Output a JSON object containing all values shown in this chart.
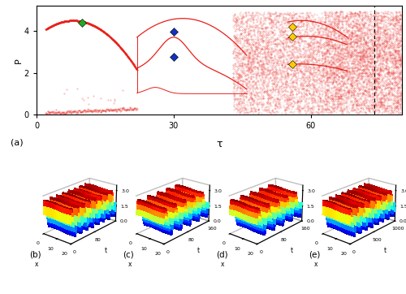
{
  "bifurcation": {
    "tau_range": [
      0,
      80
    ],
    "P_range": [
      0,
      5.2
    ],
    "yticks": [
      0,
      2,
      4
    ],
    "xticks": [
      0,
      30,
      60
    ],
    "tau_label": "τ",
    "ylabel": "P",
    "dashed_tau": 74,
    "green_diamond": {
      "tau": 10,
      "P": 4.4
    },
    "blue_diamonds": [
      {
        "tau": 30,
        "P": 3.95
      },
      {
        "tau": 30,
        "P": 2.75
      }
    ],
    "yellow_diamonds": [
      {
        "tau": 56,
        "P": 4.18
      },
      {
        "tau": 56,
        "P": 3.72
      },
      {
        "tau": 56,
        "P": 2.42
      }
    ]
  },
  "subplots": [
    {
      "label": "(b)",
      "tau_val": 10,
      "t_max": 160,
      "x_max": 20,
      "t_ticks": [
        0,
        80
      ],
      "p_ticks": [
        0,
        1.5,
        3
      ],
      "n_periods": 8
    },
    {
      "label": "(c)",
      "tau_val": 30,
      "t_max": 160,
      "x_max": 20,
      "t_ticks": [
        0,
        80,
        160
      ],
      "p_ticks": [
        0,
        1.5,
        3
      ],
      "n_periods": 5
    },
    {
      "label": "(d)",
      "tau_val": 56,
      "t_max": 160,
      "x_max": 20,
      "t_ticks": [
        0,
        80,
        160
      ],
      "p_ticks": [
        0,
        1.5,
        3
      ],
      "n_periods": 5
    },
    {
      "label": "(e)",
      "tau_val": 74,
      "t_max": 1000,
      "x_max": 20,
      "t_ticks": [
        0,
        500,
        1000
      ],
      "p_ticks": [
        0,
        1.5,
        3
      ],
      "n_periods": 8
    }
  ],
  "colors": {
    "red": "#E8201A",
    "green_diamond": "#22AA22",
    "blue_diamond": "#1133BB",
    "yellow_diamond": "#FFCC00",
    "background": "#FFFFFF"
  }
}
